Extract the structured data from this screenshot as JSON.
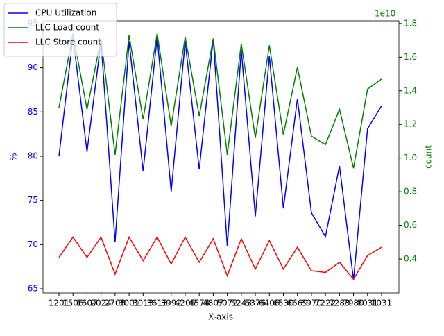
{
  "chart_data": {
    "type": "line",
    "xlabel": "X-axis",
    "ylabel": "%",
    "y2label": "count",
    "y2_offset": "1e10",
    "categories": [
      "1201",
      "1506",
      "1607",
      "2024",
      "2708",
      "3001",
      "3013",
      "3613",
      "3992",
      "4205",
      "4574",
      "4807",
      "5072",
      "5243",
      "5376",
      "6406",
      "6530",
      "6669",
      "6970",
      "7222",
      "7283",
      "7980",
      "8031",
      "1031"
    ],
    "series": [
      {
        "name": "CPU Utilization",
        "color": "#0000ff",
        "axis": "y",
        "values": [
          80.0,
          93.5,
          80.5,
          93.0,
          70.3,
          93.0,
          78.3,
          93.5,
          76.0,
          93.0,
          78.5,
          93.3,
          69.8,
          92.0,
          73.2,
          91.3,
          74.1,
          86.5,
          73.6,
          70.9,
          78.9,
          66.0,
          83.1,
          85.7
        ]
      },
      {
        "name": "LLC Load count",
        "color": "#008000",
        "axis": "y2",
        "values": [
          13000000000,
          17400000000,
          12900000000,
          17100000000,
          10200000000,
          17300000000,
          12300000000,
          17400000000,
          11900000000,
          17200000000,
          12500000000,
          17100000000,
          10200000000,
          16800000000,
          11200000000,
          16700000000,
          11400000000,
          15400000000,
          11300000000,
          10800000000,
          12900000000,
          9400000000,
          14100000000,
          14700000000
        ]
      },
      {
        "name": "LLC Store count",
        "color": "#ff0000",
        "axis": "y2",
        "values": [
          4100000000,
          5300000000,
          4100000000,
          5300000000,
          3100000000,
          5300000000,
          3900000000,
          5300000000,
          3700000000,
          5300000000,
          3800000000,
          5200000000,
          3000000000,
          5200000000,
          3400000000,
          5100000000,
          3400000000,
          4700000000,
          3300000000,
          3200000000,
          3800000000,
          2800000000,
          4200000000,
          4700000000
        ]
      }
    ],
    "ylim": [
      64.53,
      95.31
    ],
    "yticks": [
      65,
      70,
      75,
      80,
      85,
      90,
      95
    ],
    "y2lim": [
      1980000000,
      18160000000
    ],
    "y2ticks": [
      {
        "value": 4000000000,
        "label": "0.4"
      },
      {
        "value": 6000000000,
        "label": "0.6"
      },
      {
        "value": 8000000000,
        "label": "0.8"
      },
      {
        "value": 10000000000,
        "label": "1.0"
      },
      {
        "value": 12000000000,
        "label": "1.2"
      },
      {
        "value": 14000000000,
        "label": "1.4"
      },
      {
        "value": 16000000000,
        "label": "1.6"
      },
      {
        "value": 18000000000,
        "label": "1.8"
      }
    ],
    "legend": "upper left"
  }
}
